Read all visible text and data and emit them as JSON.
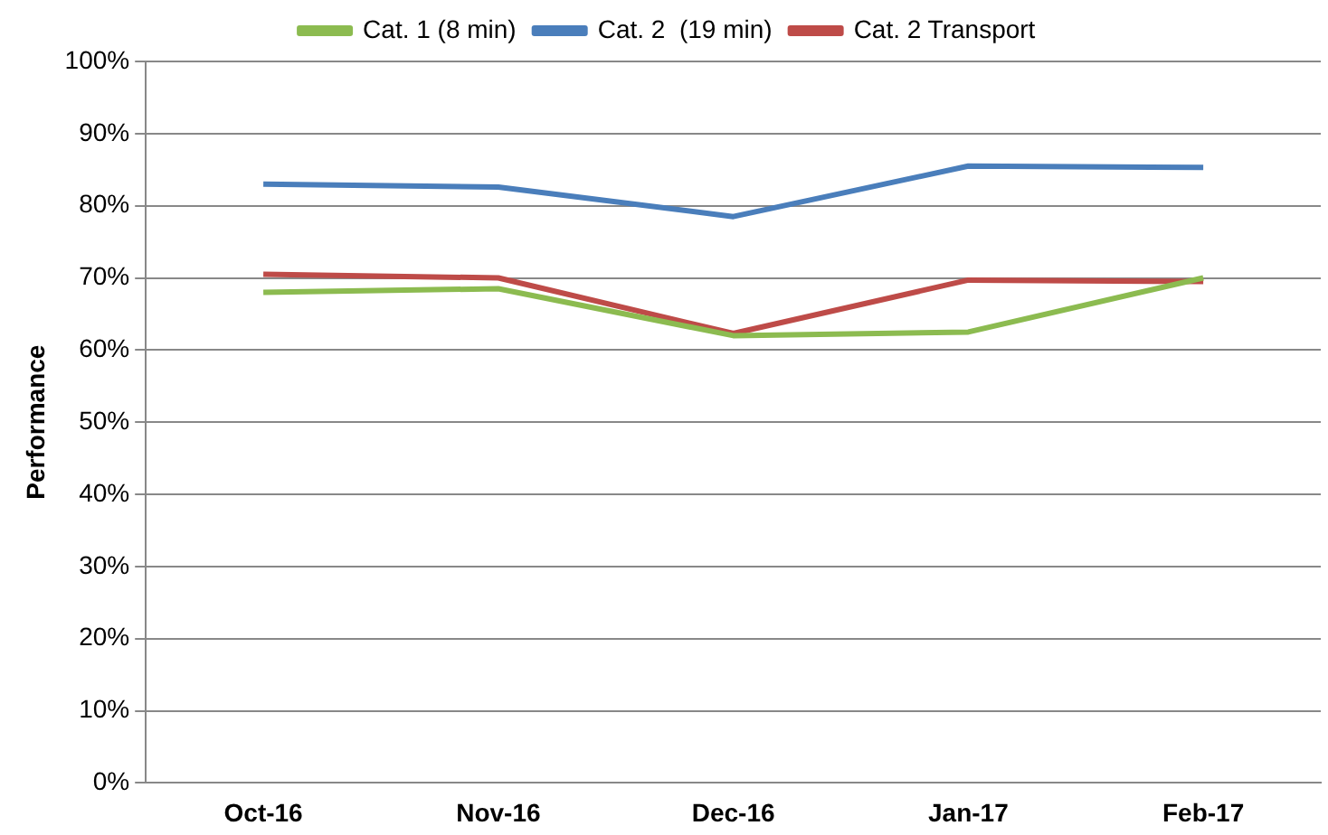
{
  "chart_data": {
    "type": "line",
    "ylabel": "Performance",
    "categories": [
      "Oct-16",
      "Nov-16",
      "Dec-16",
      "Jan-17",
      "Feb-17"
    ],
    "series": [
      {
        "name": "Cat. 1 (8 min)",
        "color": "#8cbb50",
        "values": [
          68,
          68.5,
          62,
          62.5,
          70
        ]
      },
      {
        "name": "Cat. 2  (19 min)",
        "color": "#4a7ebb",
        "values": [
          83,
          82.6,
          78.5,
          85.5,
          85.3
        ]
      },
      {
        "name": "Cat. 2 Transport",
        "color": "#be4b48",
        "values": [
          70.5,
          70,
          62.3,
          69.7,
          69.5
        ]
      }
    ],
    "ylim": [
      0,
      100
    ],
    "yticks": [
      {
        "value": 0,
        "label": "0%"
      },
      {
        "value": 10,
        "label": "10%"
      },
      {
        "value": 20,
        "label": "20%"
      },
      {
        "value": 30,
        "label": "30%"
      },
      {
        "value": 40,
        "label": "40%"
      },
      {
        "value": 50,
        "label": "50%"
      },
      {
        "value": 60,
        "label": "60%"
      },
      {
        "value": 70,
        "label": "70%"
      },
      {
        "value": 80,
        "label": "80%"
      },
      {
        "value": 90,
        "label": "90%"
      },
      {
        "value": 100,
        "label": "100%"
      }
    ],
    "grid": "y",
    "legend": "top",
    "marker": "none",
    "line_style": "solid"
  }
}
